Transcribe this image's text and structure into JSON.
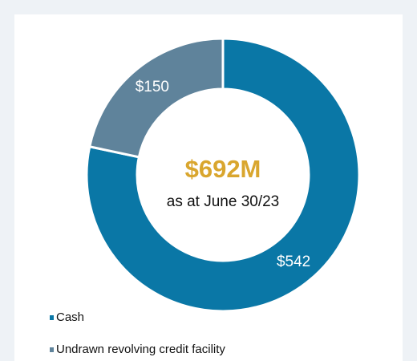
{
  "chart_data": {
    "type": "donut",
    "center_title": "$692M",
    "center_subtitle": "as at June 30/23",
    "categories": [
      "Cash",
      "Undrawn revolving credit facility"
    ],
    "series": [
      {
        "values": [
          542,
          150
        ],
        "value_labels": [
          "$542",
          "$150"
        ],
        "colors": [
          "#0a77a6",
          "#5f839b"
        ]
      }
    ],
    "legend": "bottom-left"
  }
}
